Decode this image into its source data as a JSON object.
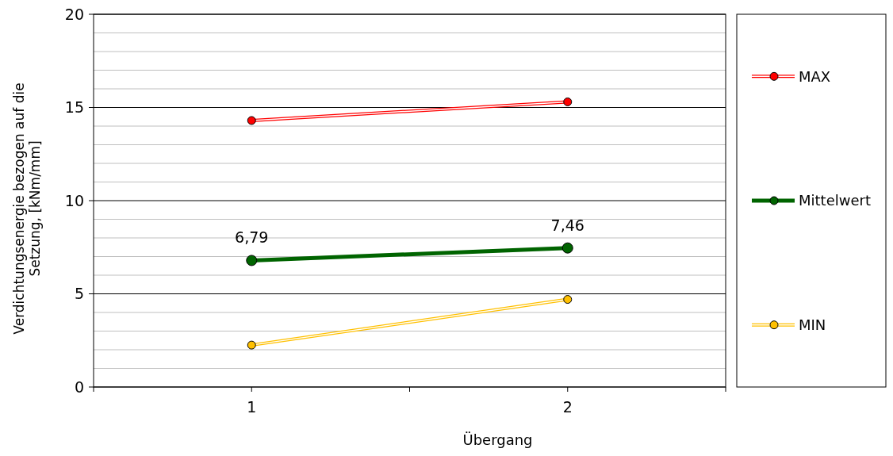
{
  "chart_data": {
    "type": "line",
    "xlabel": "Übergang",
    "ylabel": "Verdichtungsenergie bezogen auf die Setzung, [kNm/mm]",
    "categories": [
      "1",
      "2"
    ],
    "series": [
      {
        "name": "MAX",
        "color": "#ff0000",
        "values": [
          14.3,
          15.3
        ]
      },
      {
        "name": "Mittelwert",
        "color": "#006400",
        "values": [
          6.79,
          7.46
        ],
        "value_labels": [
          "6,79",
          "7,46"
        ]
      },
      {
        "name": "MIN",
        "color": "#ffc000",
        "values": [
          2.25,
          4.7
        ]
      }
    ],
    "ylim": [
      0,
      20
    ],
    "yticks": [
      0,
      {
        "value": 1,
        "label": null
      },
      {
        "value": 2,
        "label": null
      },
      {
        "value": 3,
        "label": null
      },
      {
        "value": 4,
        "label": null
      },
      5,
      {
        "value": 6,
        "label": null
      },
      {
        "value": 7,
        "label": null
      },
      {
        "value": 8,
        "label": null
      },
      {
        "value": 9,
        "label": null
      },
      10,
      {
        "value": 11,
        "label": null
      },
      {
        "value": 12,
        "label": null
      },
      {
        "value": 13,
        "label": null
      },
      {
        "value": 14,
        "label": null
      },
      15,
      {
        "value": 16,
        "label": null
      },
      {
        "value": 17,
        "label": null
      },
      {
        "value": 18,
        "label": null
      },
      {
        "value": 19,
        "label": null
      },
      20
    ],
    "grid": true,
    "legend": "right",
    "marker": "circle"
  }
}
